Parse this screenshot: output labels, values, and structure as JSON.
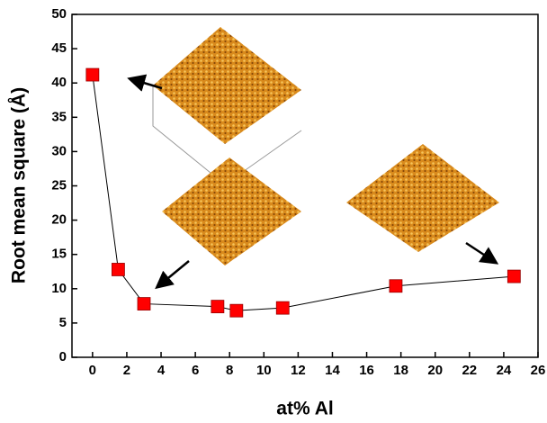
{
  "chart_data": {
    "type": "line",
    "x_label": "at% Al",
    "y_label": "Root mean square (Å)",
    "series": [
      {
        "color": "#ff0000",
        "x": [
          0,
          1.5,
          3,
          7.3,
          8.4,
          11.1,
          17.7,
          24.6
        ],
        "values": [
          41.2,
          12.8,
          7.8,
          7.4,
          6.8,
          7.2,
          10.4,
          11.8
        ]
      }
    ],
    "xlim": [
      -1.2,
      26
    ],
    "xticks": [
      0,
      2,
      4,
      6,
      8,
      10,
      12,
      14,
      16,
      18,
      20,
      22,
      24,
      26
    ],
    "ylim": [
      0,
      50
    ],
    "yticks": [
      0,
      5,
      10,
      15,
      20,
      25,
      30,
      35,
      40,
      45,
      50
    ],
    "grid": false
  }
}
